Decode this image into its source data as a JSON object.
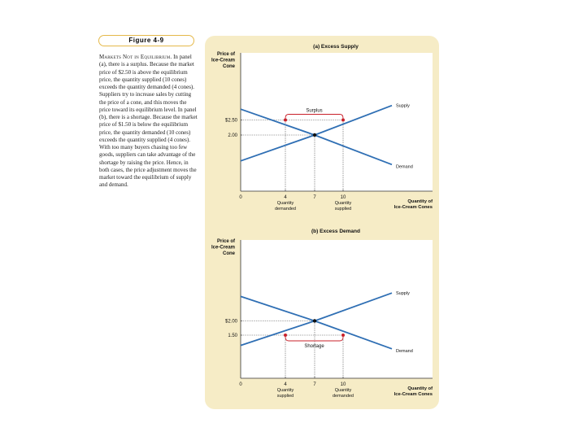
{
  "figure": {
    "label": "Figure 4-9"
  },
  "caption": {
    "heading": "Markets Not in Equilibrium.",
    "body": "In panel (a), there is a surplus. Because the market price of $2.50 is above the equilibrium price, the quantity supplied (10 cones) exceeds the quantity demanded (4 cones). Suppliers try to increase sales by cutting the price of a cone, and this moves the price toward its equilibrium level. In panel (b), there is a shortage. Because the market price of $1.50 is below the equilibrium price, the quantity demanded (10 cones) exceeds the quantity supplied (4 cones). With too many buyers chasing too few goods, suppliers can take advantage of the shortage by raising the price. Hence, in both cases, the price adjustment moves the market toward the equilibrium of supply and demand."
  },
  "colors": {
    "curve": "#2f6fb4",
    "marker_red": "#c8202a",
    "marker_black": "#111111",
    "bracket": "#c8202a",
    "panel_bg": "#f6ecc6"
  },
  "chart_data": [
    {
      "type": "line",
      "title": "(a) Excess Supply",
      "ylabel": "Price of Ice-Cream Cone",
      "xlabel": "Quantity of Ice-Cream Cones",
      "x_ticks": [
        "0",
        "4",
        "7",
        "10"
      ],
      "x_tick_sublabels": {
        "4": "Quantity demanded",
        "10": "Quantity supplied"
      },
      "y_ticks": [
        "$2.50",
        "2.00"
      ],
      "series": [
        {
          "name": "Supply",
          "points": [
            [
              0,
              1.14
            ],
            [
              7,
              2.0
            ],
            [
              15,
              2.98
            ]
          ]
        },
        {
          "name": "Demand",
          "points": [
            [
              0,
              2.86
            ],
            [
              7,
              2.0
            ],
            [
              15,
              1.02
            ]
          ]
        }
      ],
      "price_line": 2.5,
      "equilibrium": {
        "x": 7,
        "y": 2.0
      },
      "market_points": [
        {
          "x": 4,
          "y": 2.5
        },
        {
          "x": 10,
          "y": 2.5
        }
      ],
      "annotation": "Surplus"
    },
    {
      "type": "line",
      "title": "(b) Excess Demand",
      "ylabel": "Price of Ice-Cream Cone",
      "xlabel": "Quantity of Ice-Cream Cones",
      "x_ticks": [
        "0",
        "4",
        "7",
        "10"
      ],
      "x_tick_sublabels": {
        "4": "Quantity supplied",
        "10": "Quantity demanded"
      },
      "y_ticks": [
        "$2.00",
        "1.50"
      ],
      "series": [
        {
          "name": "Supply",
          "points": [
            [
              0,
              1.14
            ],
            [
              7,
              2.0
            ],
            [
              15,
              2.98
            ]
          ]
        },
        {
          "name": "Demand",
          "points": [
            [
              0,
              2.86
            ],
            [
              7,
              2.0
            ],
            [
              15,
              1.02
            ]
          ]
        }
      ],
      "price_line": 1.5,
      "equilibrium": {
        "x": 7,
        "y": 2.0
      },
      "market_points": [
        {
          "x": 4,
          "y": 1.5
        },
        {
          "x": 10,
          "y": 1.5
        }
      ],
      "annotation": "Shortage"
    }
  ]
}
